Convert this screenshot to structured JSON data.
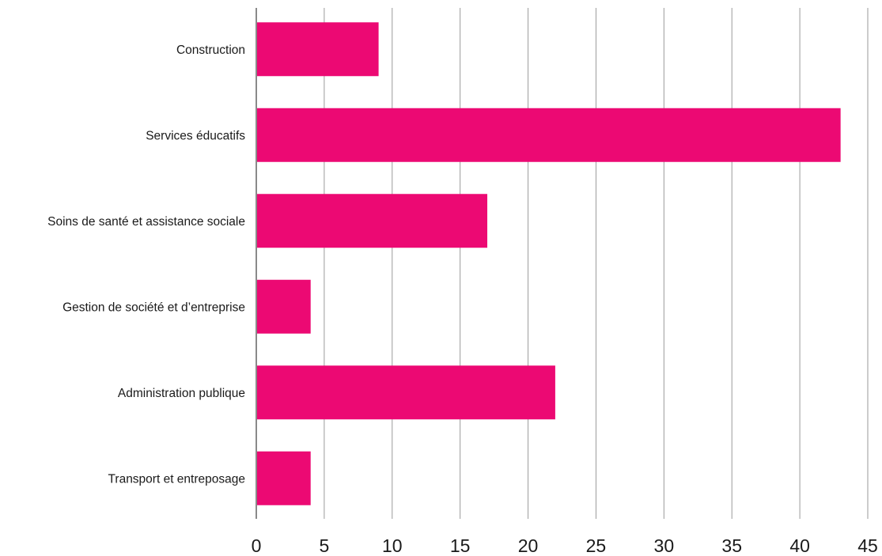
{
  "chart_data": {
    "type": "bar",
    "orientation": "horizontal",
    "categories": [
      "Construction",
      "Services éducatifs",
      "Soins de santé et assistance sociale",
      "Gestion de société et d’entreprise",
      "Administration publique",
      "Transport et entreposage"
    ],
    "values": [
      9,
      43,
      17,
      4,
      22,
      4
    ],
    "xlim": [
      0,
      45
    ],
    "xticks": [
      0,
      5,
      10,
      15,
      20,
      25,
      30,
      35,
      40,
      45
    ],
    "grid": "vertical",
    "bar_color": "#ec0973",
    "grid_color": "#9a9a9a",
    "axis_color": "#8a8a8a"
  }
}
